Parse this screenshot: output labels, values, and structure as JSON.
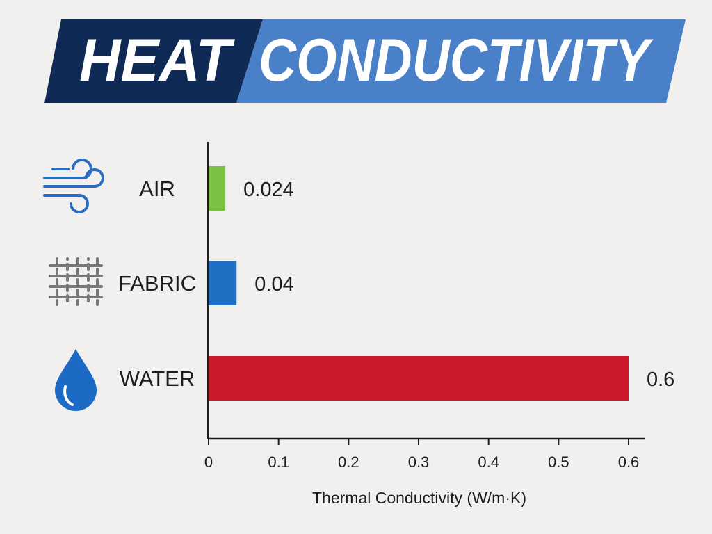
{
  "banner": {
    "word_left": "HEAT",
    "word_right": "CONDUCTIVITY",
    "color_left": "#0e2a55",
    "color_right": "#4a80c8"
  },
  "chart_data": {
    "type": "bar",
    "orientation": "horizontal",
    "categories": [
      "AIR",
      "FABRIC",
      "WATER"
    ],
    "values": [
      0.024,
      0.04,
      0.6
    ],
    "value_labels": [
      "0.024",
      "0.04",
      "0.6"
    ],
    "colors": [
      "#7cc242",
      "#1f6fc5",
      "#cc1a2b"
    ],
    "icons": [
      "wind-icon",
      "fabric-weave-icon",
      "water-drop-icon"
    ],
    "xlabel": "Thermal Conductivity (W/m·K)",
    "xticks": [
      "0",
      "0.1",
      "0.2",
      "0.3",
      "0.4",
      "0.5",
      "0.6"
    ],
    "xlim": [
      0,
      0.6
    ],
    "grid": false,
    "legend": "none"
  }
}
